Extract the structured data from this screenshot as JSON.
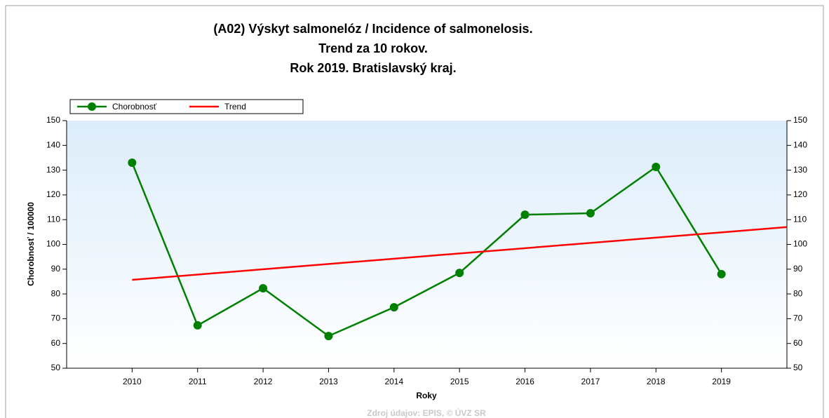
{
  "chart_data": {
    "type": "line",
    "title": [
      "(A02) Výskyt salmonelóz / Incidence of salmonelosis.",
      "Trend za 10 rokov.",
      "Rok 2019. Bratislavský kraj."
    ],
    "x_label": "Roky",
    "y_label": "Chorobnosť / 100000",
    "source": "Zdroj údajov: EPIS, © ÚVZ SR",
    "series": [
      {
        "name": "Chorobnosť",
        "color": "#008000",
        "markers": true,
        "x": [
          2010,
          2011,
          2012,
          2013,
          2014,
          2015,
          2016,
          2017,
          2018,
          2019
        ],
        "values": [
          133,
          67.3,
          82.3,
          63,
          74.6,
          88.5,
          112,
          112.6,
          131.3,
          88
        ]
      },
      {
        "name": "Trend",
        "color": "#ff0000",
        "markers": false,
        "x": [
          2010,
          2020
        ],
        "values": [
          85.7,
          107
        ]
      }
    ],
    "xlim": [
      2009,
      2020
    ],
    "xticks": [
      2010,
      2011,
      2012,
      2013,
      2014,
      2015,
      2016,
      2017,
      2018,
      2019
    ],
    "ylim": [
      50,
      150
    ],
    "yticks": [
      50,
      60,
      70,
      80,
      90,
      100,
      110,
      120,
      130,
      140,
      150
    ],
    "right_axis": true,
    "legend": "top-left"
  }
}
